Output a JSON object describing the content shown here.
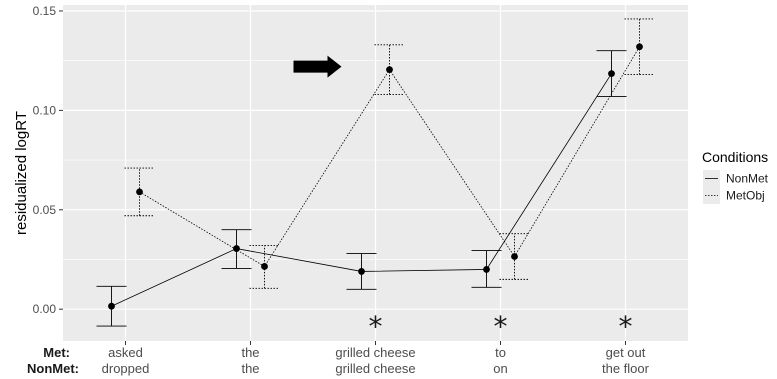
{
  "chart_data": {
    "type": "line",
    "title": "",
    "xlabel": "",
    "ylabel": "residualized logRT",
    "ylim": [
      -0.016,
      0.153
    ],
    "yticks": [
      0.0,
      0.05,
      0.1,
      0.15
    ],
    "ytick_labels": [
      "0.00",
      "0.05",
      "0.10",
      "0.15"
    ],
    "grid": true,
    "legend_placement": "right",
    "legend_title": "Conditions",
    "row_labels": {
      "met": "Met:",
      "nonmet": "NonMet:"
    },
    "categories": [
      {
        "met": "asked",
        "nonmet": "dropped"
      },
      {
        "met": "the",
        "nonmet": "the"
      },
      {
        "met": "grilled cheese",
        "nonmet": "grilled cheese"
      },
      {
        "met": "to",
        "nonmet": "on"
      },
      {
        "met": "get out",
        "nonmet": "the floor"
      }
    ],
    "series": [
      {
        "name": "NonMet",
        "linestyle": "solid",
        "values": [
          0.0015,
          0.0305,
          0.019,
          0.02,
          0.1185
        ],
        "error_low": [
          -0.0085,
          0.0205,
          0.01,
          0.011,
          0.107
        ],
        "error_high": [
          0.0115,
          0.04,
          0.028,
          0.0295,
          0.13
        ]
      },
      {
        "name": "MetObj",
        "linestyle": "dotted",
        "values": [
          0.059,
          0.0215,
          0.1205,
          0.0265,
          0.132
        ],
        "error_low": [
          0.047,
          0.0105,
          0.108,
          0.015,
          0.118
        ],
        "error_high": [
          0.071,
          0.032,
          0.133,
          0.038,
          0.146
        ]
      }
    ],
    "significance_markers": [
      "",
      "",
      "*",
      "*",
      "*"
    ],
    "arrow_annotation": {
      "category_index": 2,
      "y": 0.122,
      "direction": "right"
    },
    "colors": {
      "panel": "#ebebeb",
      "grid": "#ffffff",
      "line": "#000000"
    }
  }
}
